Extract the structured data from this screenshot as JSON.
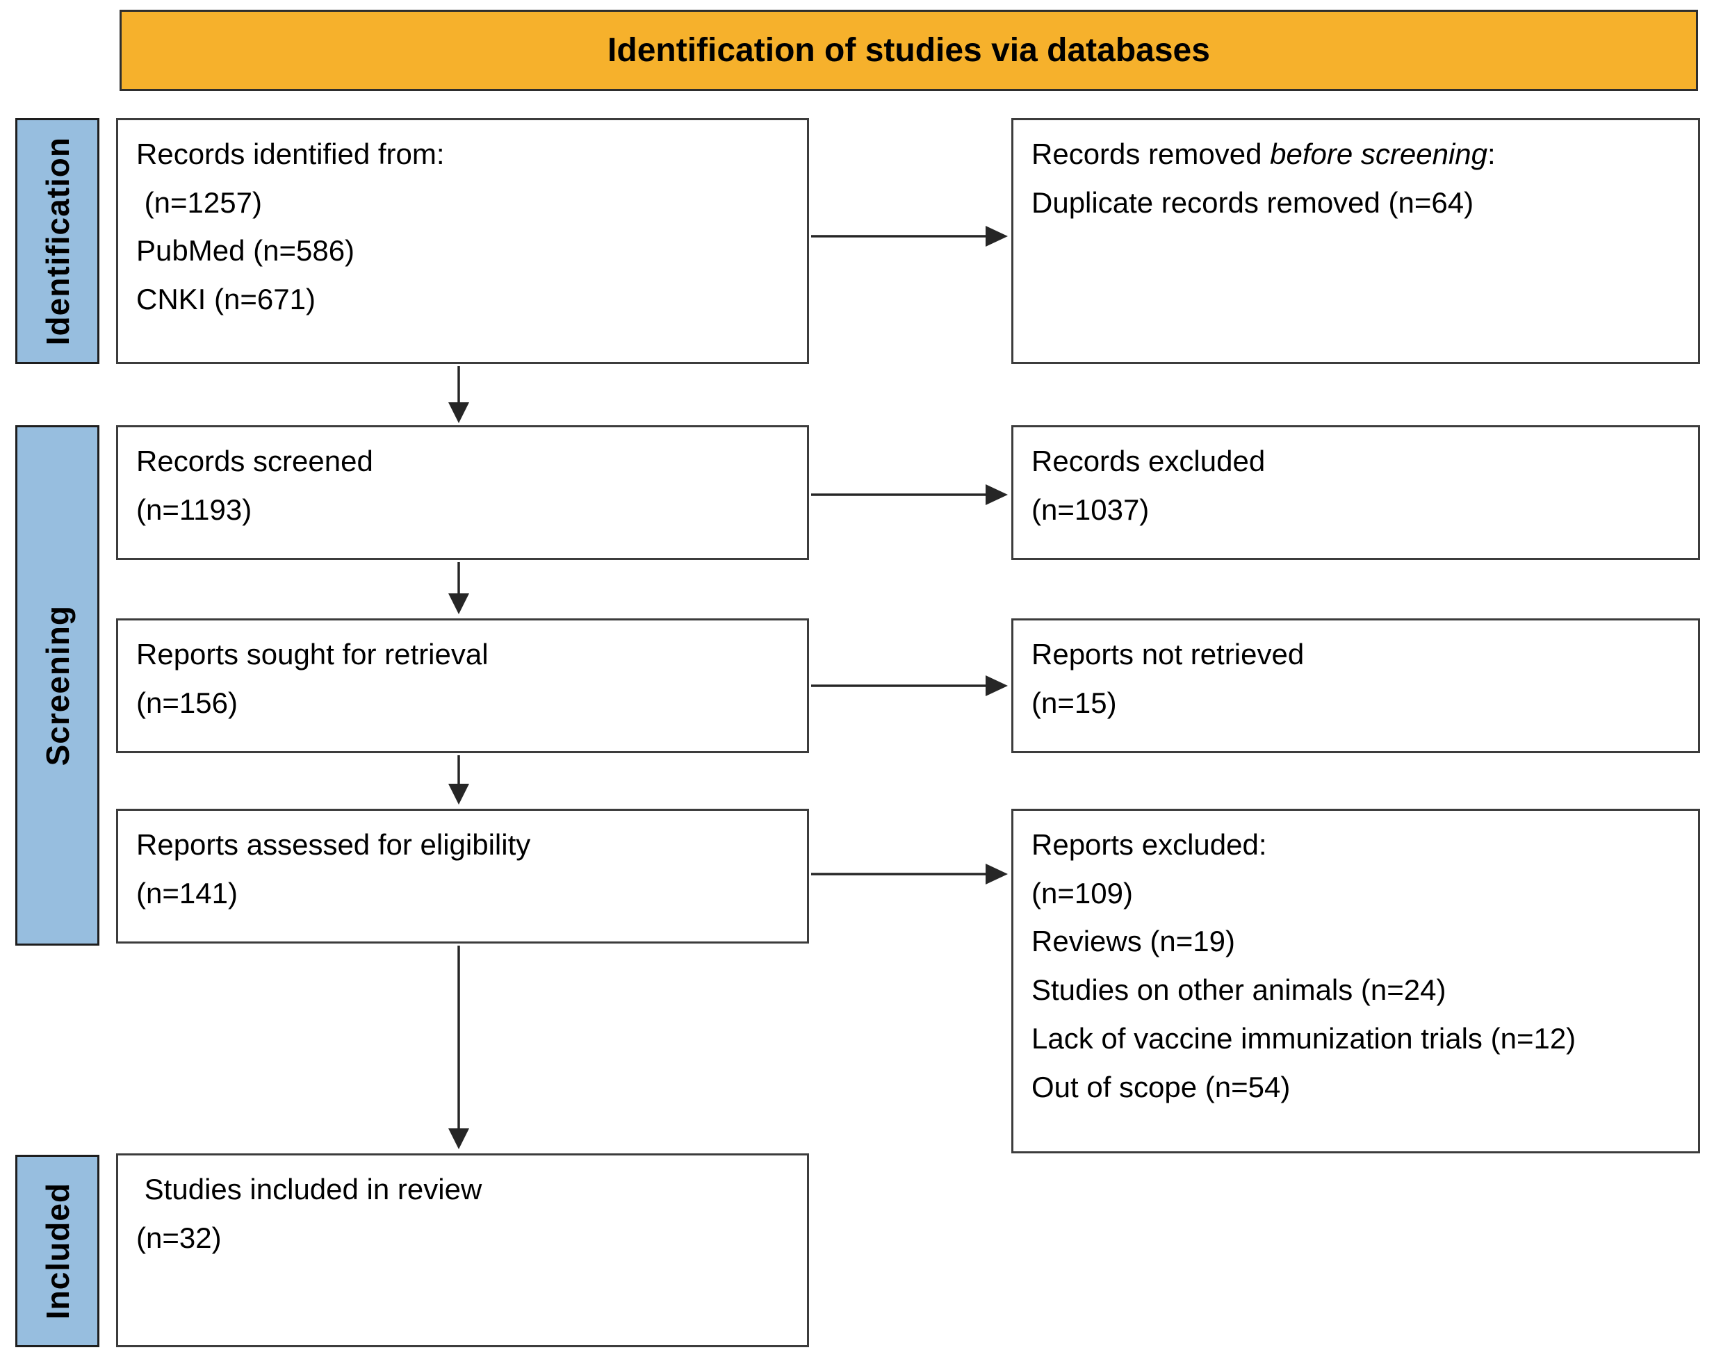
{
  "header": {
    "title": "Identification of studies via databases"
  },
  "colors": {
    "header_bg": "#F6B12C",
    "header_border": "#2E2E2E",
    "stage_bg": "#97BEDF",
    "stage_border": "#1E1E1E",
    "box_border": "#3C3C3C",
    "arrow": "#262626"
  },
  "stages": [
    {
      "label": "Identification"
    },
    {
      "label": "Screening"
    },
    {
      "label": "Included"
    }
  ],
  "boxes": {
    "records_identified": {
      "lines": [
        [
          {
            "t": "Records identified from:"
          }
        ],
        [
          {
            "t": " (n=1257)"
          }
        ],
        [
          {
            "t": "PubMed (n=586)"
          }
        ],
        [
          {
            "t": "CNKI (n=671)"
          }
        ]
      ]
    },
    "records_removed": {
      "lines": [
        [
          {
            "t": "Records removed "
          },
          {
            "t": "before screening",
            "i": true
          },
          {
            "t": ":"
          }
        ],
        [
          {
            "t": "Duplicate records removed (n=64)"
          }
        ]
      ]
    },
    "records_screened": {
      "lines": [
        [
          {
            "t": "Records screened"
          }
        ],
        [
          {
            "t": "(n=1193)"
          }
        ]
      ]
    },
    "records_excluded": {
      "lines": [
        [
          {
            "t": "Records excluded"
          }
        ],
        [
          {
            "t": "(n=1037)"
          }
        ]
      ]
    },
    "reports_sought": {
      "lines": [
        [
          {
            "t": "Reports sought for retrieval"
          }
        ],
        [
          {
            "t": "(n=156)"
          }
        ]
      ]
    },
    "reports_not_retrieved": {
      "lines": [
        [
          {
            "t": "Reports not retrieved"
          }
        ],
        [
          {
            "t": "(n=15)"
          }
        ]
      ]
    },
    "reports_assessed": {
      "lines": [
        [
          {
            "t": "Reports assessed for eligibility"
          }
        ],
        [
          {
            "t": "(n=141)"
          }
        ]
      ]
    },
    "reports_excluded": {
      "lines": [
        [
          {
            "t": "Reports excluded:"
          }
        ],
        [
          {
            "t": "(n=109)"
          }
        ],
        [
          {
            "t": "Reviews (n=19)"
          }
        ],
        [
          {
            "t": "Studies on other animals (n=24)"
          }
        ],
        [
          {
            "t": "Lack of vaccine immunization trials (n=12)"
          }
        ],
        [
          {
            "t": "Out of scope (n=54)"
          }
        ]
      ]
    },
    "studies_included": {
      "lines": [
        [
          {
            "t": " Studies included in review"
          }
        ],
        [
          {
            "t": "(n=32)"
          }
        ]
      ]
    }
  }
}
